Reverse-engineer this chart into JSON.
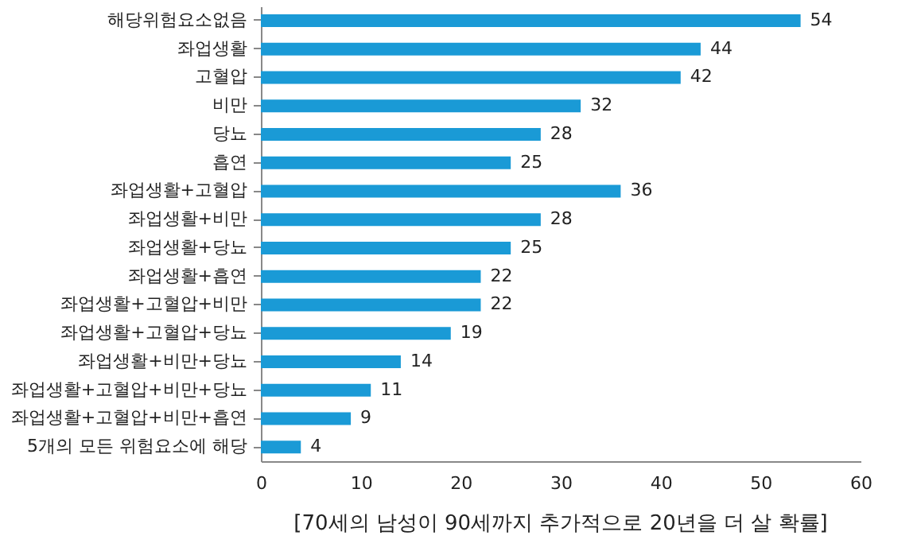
{
  "chart_data": {
    "type": "bar",
    "orientation": "horizontal",
    "title": "[70세의 남성이 90세까지 추가적으로 20년을 더 살 확률]",
    "categories": [
      "해당위험요소없음",
      "좌업생활",
      "고혈압",
      "비만",
      "당뇨",
      "흡연",
      "좌업생활+고혈압",
      "좌업생활+비만",
      "좌업생활+당뇨",
      "좌업생활+흡연",
      "좌업생활+고혈압+비만",
      "좌업생활+고혈압+당뇨",
      "좌업생활+비만+당뇨",
      "좌업생활+고혈압+비만+당뇨",
      "좌업생활+고혈압+비만+흡연",
      "5개의 모든 위험요소에  해당"
    ],
    "values": [
      54,
      44,
      42,
      32,
      28,
      25,
      36,
      28,
      25,
      22,
      22,
      19,
      14,
      11,
      9,
      4
    ],
    "color": "#1a9ad6",
    "xlim": [
      0,
      60
    ],
    "xticks": [
      0,
      10,
      20,
      30,
      40,
      50,
      60
    ],
    "data_labels": true,
    "grid": false
  }
}
